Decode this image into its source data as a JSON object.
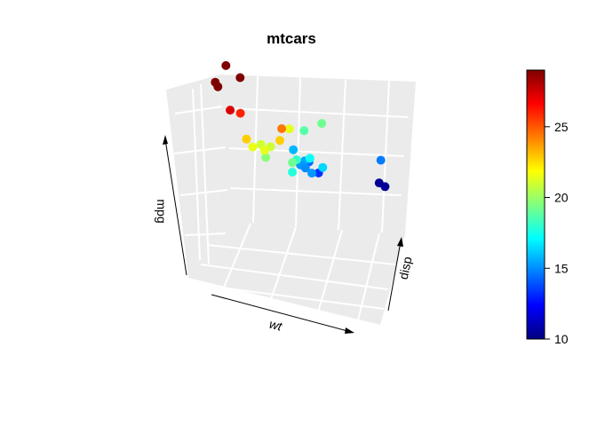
{
  "chart_data": {
    "type": "scatter",
    "title": "mtcars",
    "xlabel": "wt",
    "ylabel": "disp",
    "zlabel": "mpg",
    "projection": "3d",
    "panel_background": "#ebebeb",
    "grid_color": "#ffffff",
    "point_colorscale": "jet",
    "colorbar": {
      "range": [
        10,
        29
      ],
      "ticks": [
        10,
        15,
        20,
        25
      ],
      "tick_labels": [
        "10",
        "15",
        "20",
        "25"
      ]
    },
    "points": [
      {
        "x": 2.62,
        "y": 160,
        "z": 21.0
      },
      {
        "x": 2.875,
        "y": 160,
        "z": 21.0
      },
      {
        "x": 2.32,
        "y": 108,
        "z": 22.8
      },
      {
        "x": 3.215,
        "y": 258,
        "z": 21.4
      },
      {
        "x": 3.44,
        "y": 360,
        "z": 18.7
      },
      {
        "x": 3.46,
        "y": 225,
        "z": 18.1
      },
      {
        "x": 3.57,
        "y": 360,
        "z": 14.3
      },
      {
        "x": 3.19,
        "y": 146.7,
        "z": 24.4
      },
      {
        "x": 3.15,
        "y": 140.8,
        "z": 22.8
      },
      {
        "x": 3.44,
        "y": 167.6,
        "z": 19.2
      },
      {
        "x": 3.44,
        "y": 167.6,
        "z": 17.8
      },
      {
        "x": 4.07,
        "y": 275.8,
        "z": 16.4
      },
      {
        "x": 3.73,
        "y": 275.8,
        "z": 17.3
      },
      {
        "x": 3.78,
        "y": 275.8,
        "z": 15.2
      },
      {
        "x": 5.25,
        "y": 472,
        "z": 10.4
      },
      {
        "x": 5.424,
        "y": 460,
        "z": 10.4
      },
      {
        "x": 5.345,
        "y": 440,
        "z": 14.7
      },
      {
        "x": 2.2,
        "y": 78.7,
        "z": 32.4
      },
      {
        "x": 1.615,
        "y": 75.7,
        "z": 30.4
      },
      {
        "x": 1.835,
        "y": 71.1,
        "z": 33.9
      },
      {
        "x": 2.465,
        "y": 120.1,
        "z": 21.5
      },
      {
        "x": 3.52,
        "y": 318,
        "z": 15.5
      },
      {
        "x": 3.435,
        "y": 304,
        "z": 15.2
      },
      {
        "x": 3.84,
        "y": 350,
        "z": 13.3
      },
      {
        "x": 3.845,
        "y": 400,
        "z": 19.2
      },
      {
        "x": 1.935,
        "y": 79,
        "z": 27.3
      },
      {
        "x": 2.14,
        "y": 120.3,
        "z": 26.0
      },
      {
        "x": 1.513,
        "y": 95.1,
        "z": 30.4
      },
      {
        "x": 3.17,
        "y": 351,
        "z": 15.8
      },
      {
        "x": 2.77,
        "y": 145,
        "z": 19.7
      },
      {
        "x": 3.57,
        "y": 301,
        "z": 15.0
      },
      {
        "x": 2.78,
        "y": 121,
        "z": 21.4
      }
    ]
  }
}
